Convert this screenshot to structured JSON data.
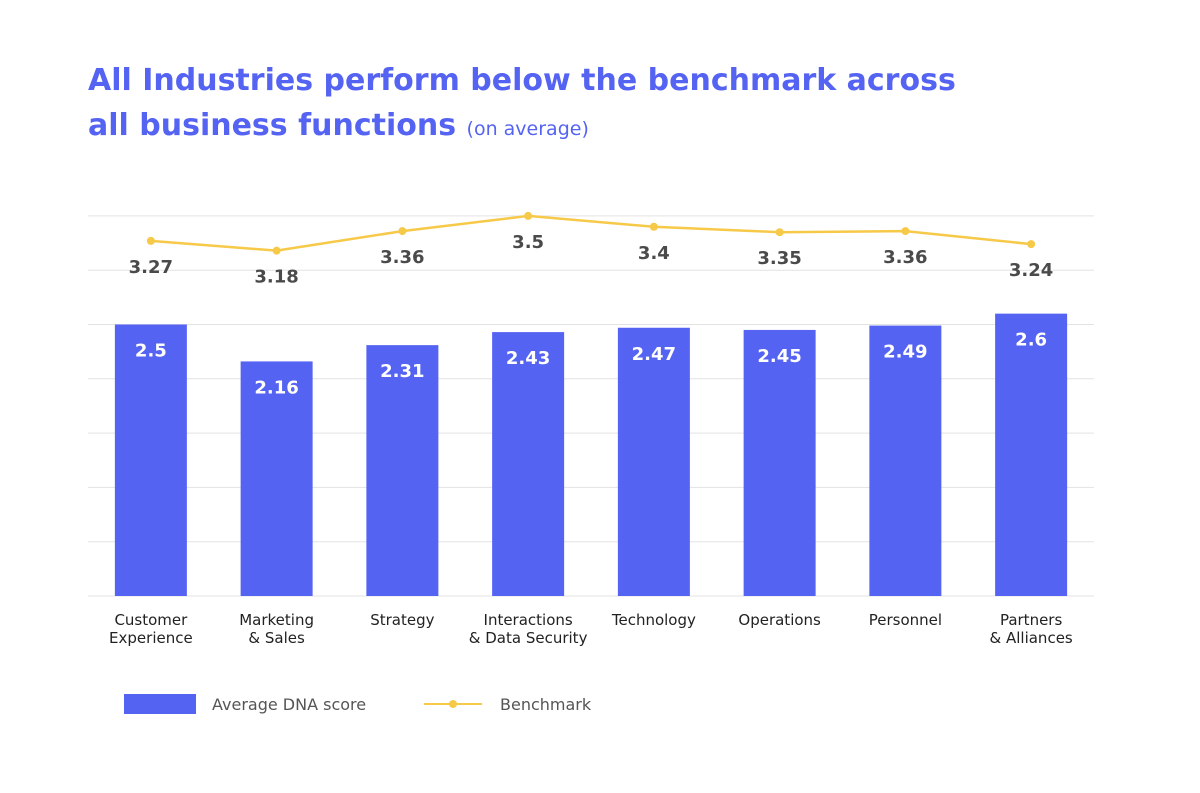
{
  "title": {
    "line1": "All Industries perform below the benchmark across",
    "line2": "all business functions",
    "subtitle": "(on average)"
  },
  "colors": {
    "title": "#5563f2",
    "bar": "#5563f2",
    "benchmark": "#f7c948",
    "grid": "#e3e3e3"
  },
  "legend": {
    "bar_label": "Average DNA score",
    "line_label": "Benchmark"
  },
  "chart_data": {
    "type": "bar",
    "categories": [
      [
        "Customer",
        "Experience"
      ],
      [
        "Marketing",
        "& Sales"
      ],
      [
        "Strategy"
      ],
      [
        "Interactions",
        "& Data Security"
      ],
      [
        "Technology"
      ],
      [
        "Operations"
      ],
      [
        "Personnel"
      ],
      [
        "Partners",
        "& Alliances"
      ]
    ],
    "series": [
      {
        "name": "Average DNA score",
        "kind": "bar",
        "values": [
          2.5,
          2.16,
          2.31,
          2.43,
          2.47,
          2.45,
          2.49,
          2.6
        ]
      },
      {
        "name": "Benchmark",
        "kind": "line",
        "values": [
          3.27,
          3.18,
          3.36,
          3.5,
          3.4,
          3.35,
          3.36,
          3.24
        ]
      }
    ],
    "ylim": [
      0,
      3.5
    ],
    "grid": true,
    "legend_position": "bottom-left"
  }
}
